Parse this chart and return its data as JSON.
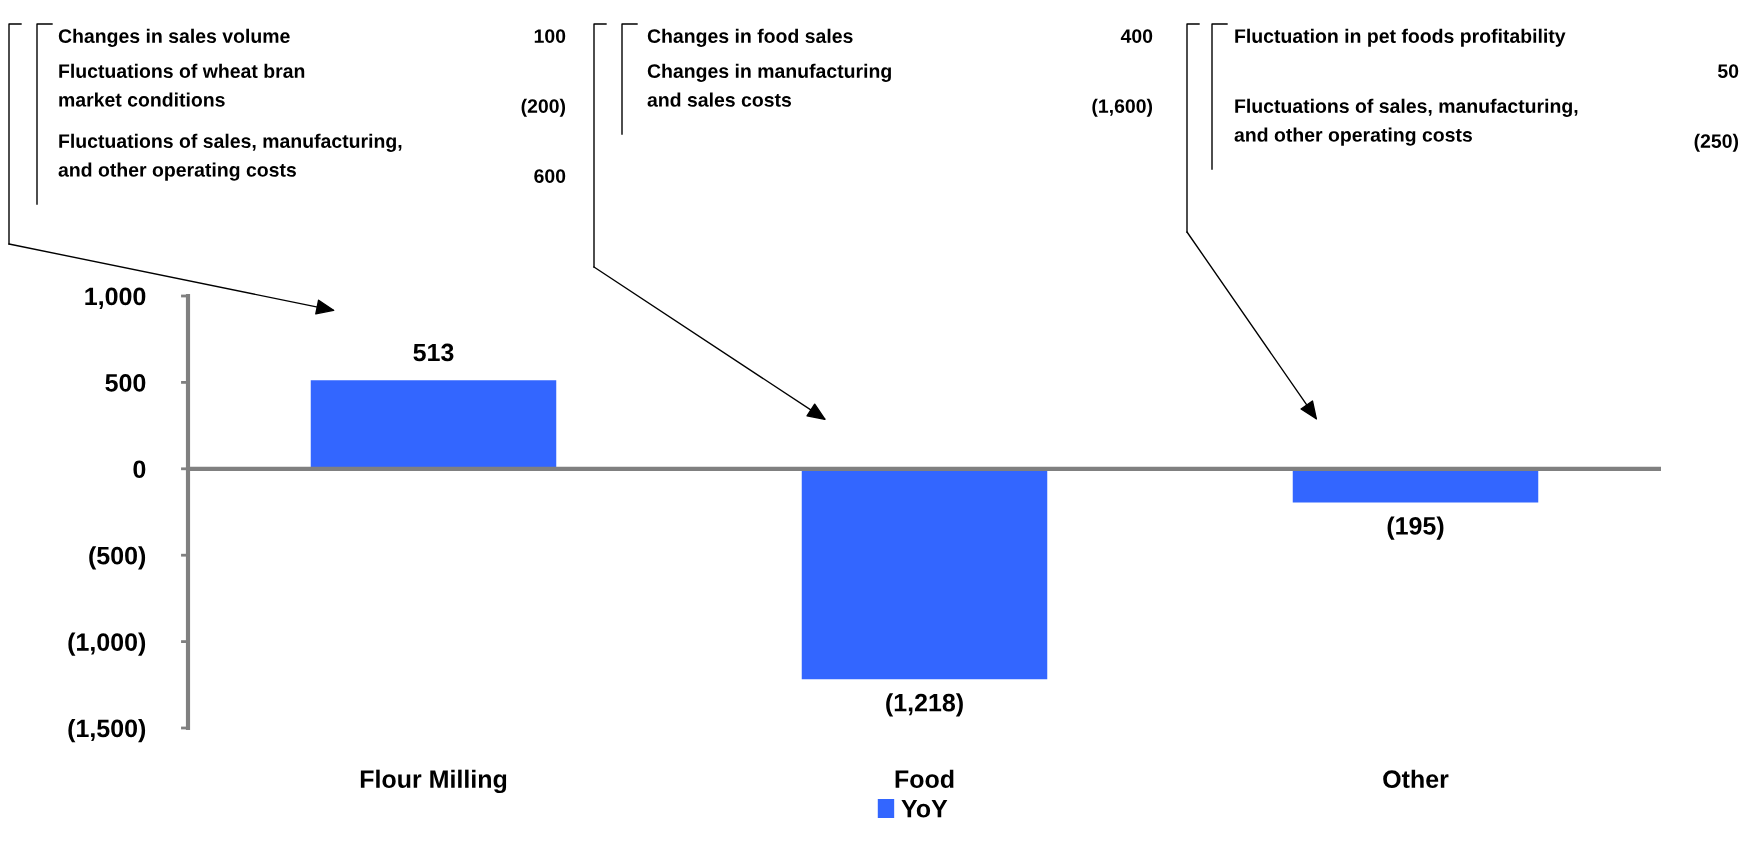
{
  "chart_data": {
    "type": "bar",
    "categories": [
      "Flour Milling",
      "Food",
      "Other"
    ],
    "series": [
      {
        "name": "YoY",
        "color": "#3366ff",
        "values": [
          513,
          -1218,
          -195
        ],
        "value_labels": [
          "513",
          "(1,218)",
          "(195)"
        ]
      }
    ],
    "ylim": [
      -1500,
      1000
    ],
    "yticks": [
      {
        "value": -1500,
        "label": "(1,500)"
      },
      {
        "value": -1000,
        "label": "(1,000)"
      },
      {
        "value": -500,
        "label": "(500)"
      },
      0,
      500,
      {
        "value": 1000,
        "label": "1,000"
      }
    ],
    "ref_lines": [
      {
        "axis": "y",
        "value": 0,
        "color": "#808080"
      }
    ],
    "annotations": [
      "Changes in sales volume",
      "100",
      "Fluctuations of wheat bran\nmarket conditions",
      "(200)",
      "Fluctuations of sales, manufacturing,\nand other operating costs",
      "600",
      "Changes in food sales",
      "400",
      "Changes in manufacturing\nand sales costs",
      "(1,600)",
      "Fluctuation in pet foods profitability",
      "50",
      "Fluctuations of sales, manufacturing,\nand other operating costs",
      "(250)"
    ],
    "grid": false,
    "legend": "bottom"
  }
}
